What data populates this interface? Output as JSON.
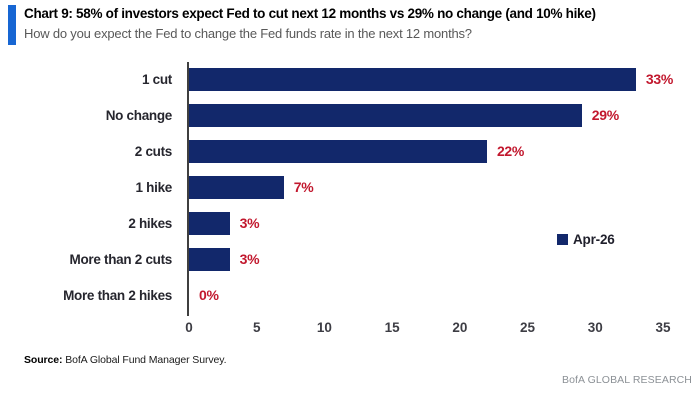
{
  "header": {
    "title": "Chart 9: 58% of investors expect Fed to cut next 12 months vs 29% no change (and 10% hike)",
    "subtitle": "How do you expect the Fed to change the Fed funds rate in the next 12 months?",
    "accent_color": "#1766D3"
  },
  "chart_data": {
    "type": "bar",
    "orientation": "horizontal",
    "title": "Chart 9: 58% of investors expect Fed to cut next 12 months vs 29% no change (and 10% hike)",
    "categories": [
      "1 cut",
      "No change",
      "2 cuts",
      "1 hike",
      "2 hikes",
      "More than 2 cuts",
      "More than 2 hikes"
    ],
    "series": [
      {
        "name": "Apr-26",
        "values": [
          33,
          29,
          22,
          7,
          3,
          3,
          0
        ],
        "data_labels": [
          "33%",
          "29%",
          "22%",
          "7%",
          "3%",
          "3%",
          "0%"
        ]
      }
    ],
    "xlabel": "",
    "ylabel": "",
    "xlim": [
      0,
      35
    ],
    "xticks": [
      0,
      5,
      10,
      15,
      20,
      25,
      30,
      35
    ],
    "grid": false,
    "legend_position": "middle-right",
    "bar_color": "#12286B",
    "data_label_color": "#C2182E"
  },
  "legend": {
    "label": "Apr-26",
    "swatch_color": "#12286B"
  },
  "footer": {
    "source_label": "Source:",
    "source_text": " BofA Global Fund Manager Survey.",
    "brand": "BofA GLOBAL RESEARCH"
  }
}
